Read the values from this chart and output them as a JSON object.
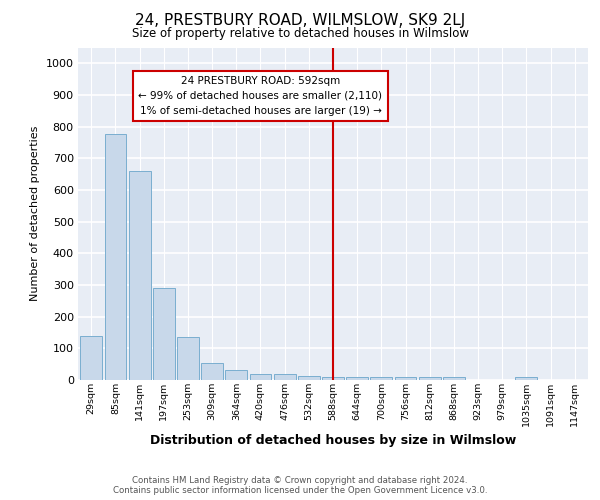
{
  "title": "24, PRESTBURY ROAD, WILMSLOW, SK9 2LJ",
  "subtitle": "Size of property relative to detached houses in Wilmslow",
  "xlabel": "Distribution of detached houses by size in Wilmslow",
  "ylabel": "Number of detached properties",
  "bar_color": "#c8d8ea",
  "bar_edge_color": "#7aaed0",
  "background_color": "#e8edf5",
  "grid_color": "#ffffff",
  "categories": [
    "29sqm",
    "85sqm",
    "141sqm",
    "197sqm",
    "253sqm",
    "309sqm",
    "364sqm",
    "420sqm",
    "476sqm",
    "532sqm",
    "588sqm",
    "644sqm",
    "700sqm",
    "756sqm",
    "812sqm",
    "868sqm",
    "923sqm",
    "979sqm",
    "1035sqm",
    "1091sqm",
    "1147sqm"
  ],
  "values": [
    140,
    778,
    660,
    290,
    135,
    55,
    33,
    20,
    18,
    12,
    10,
    10,
    10,
    8,
    8,
    8,
    0,
    0,
    10,
    0,
    0
  ],
  "ylim": [
    0,
    1050
  ],
  "yticks": [
    0,
    100,
    200,
    300,
    400,
    500,
    600,
    700,
    800,
    900,
    1000
  ],
  "vline_x_idx": 10,
  "vline_color": "#cc0000",
  "annotation_text": "24 PRESTBURY ROAD: 592sqm\n← 99% of detached houses are smaller (2,110)\n1% of semi-detached houses are larger (19) →",
  "annotation_box_facecolor": "#ffffff",
  "annotation_box_edgecolor": "#cc0000",
  "footer_line1": "Contains HM Land Registry data © Crown copyright and database right 2024.",
  "footer_line2": "Contains public sector information licensed under the Open Government Licence v3.0."
}
